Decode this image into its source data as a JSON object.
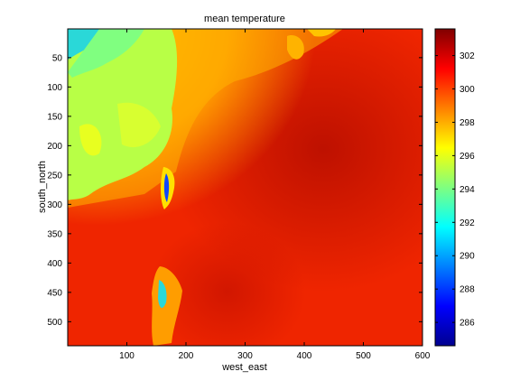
{
  "chart_data": {
    "type": "heatmap",
    "title": "mean temperature",
    "xlabel": "west_east",
    "ylabel": "south_north",
    "xlim": [
      0,
      600
    ],
    "ylim": [
      541,
      1
    ],
    "x_ticks": [
      100,
      200,
      300,
      400,
      500,
      600
    ],
    "y_ticks": [
      50,
      100,
      150,
      200,
      250,
      300,
      350,
      400,
      450,
      500
    ],
    "colormap": "jet",
    "colorbar": {
      "range": [
        284.6,
        303.6
      ],
      "ticks": [
        286,
        288,
        290,
        292,
        294,
        296,
        298,
        300,
        302
      ]
    },
    "colors": {
      "ocean": "#ef2500",
      "ocean_warm": "#c51200",
      "land_cool": "#b8ff46",
      "land_coldest": "#2ad8d8",
      "inland_lake": "#1048ff"
    }
  }
}
